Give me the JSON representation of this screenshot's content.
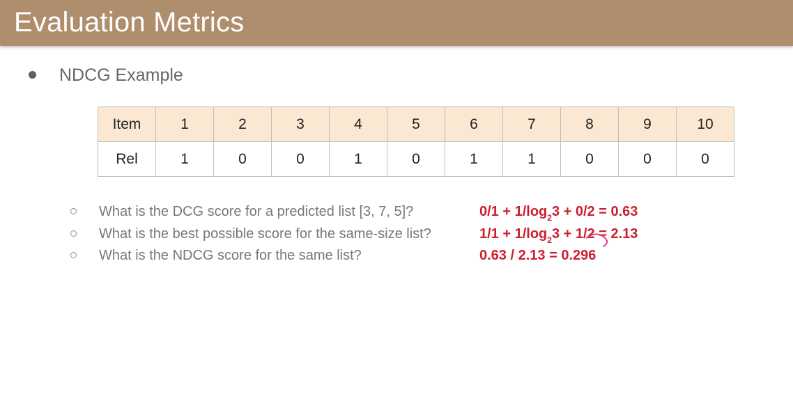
{
  "header": {
    "title": "Evaluation Metrics"
  },
  "section": {
    "heading": "NDCG Example"
  },
  "table": {
    "rows": [
      {
        "label": "Item",
        "cells": [
          "1",
          "2",
          "3",
          "4",
          "5",
          "6",
          "7",
          "8",
          "9",
          "10"
        ]
      },
      {
        "label": "Rel",
        "cells": [
          "1",
          "0",
          "0",
          "1",
          "0",
          "1",
          "1",
          "0",
          "0",
          "0"
        ]
      }
    ]
  },
  "questions": [
    {
      "text": "What is the DCG score for a predicted list [3, 7, 5]?",
      "answer": {
        "before": "0/1 + 1/log",
        "subscript": "2",
        "after": "3 + 0/2 = 0.63"
      }
    },
    {
      "text": "What is the best possible score for the same-size list?",
      "answer": {
        "before": "1/1 + 1/log",
        "subscript": "2",
        "after": "3 + 1/2 = 2.13"
      }
    },
    {
      "text": "What is the NDCG score for the same list?",
      "answer": {
        "before": "0.63 / 2.13 = 0.296"
      }
    }
  ],
  "colors": {
    "title_bar": "#af8e6d",
    "table_header": "#fbe8d2",
    "answer_red": "#cc1f2f",
    "ink_pink": "#e0307a"
  }
}
